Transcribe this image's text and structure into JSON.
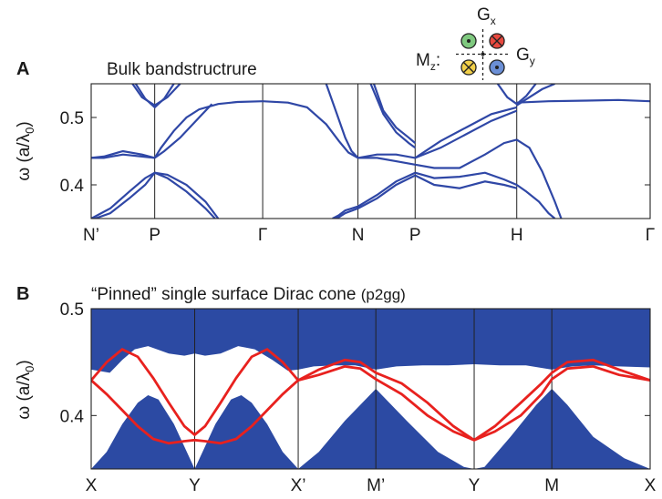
{
  "legend": {
    "mz_label": "M",
    "mz_sub": "z",
    "mz_colon": ":",
    "gx_label": "G",
    "gx_sub": "x",
    "gy_label": "G",
    "gy_sub": "y",
    "colors": {
      "green": "#7fc97f",
      "red": "#e8493f",
      "yellow": "#f2d04a",
      "blue": "#6b8fd6"
    }
  },
  "colors": {
    "bulk_band": "#2f47a6",
    "surface_band": "#e8211e",
    "bulk_continuum": "#2c4aa3"
  },
  "chart_data": [
    {
      "panel": "A",
      "type": "line",
      "title": "Bulk bandstructrure",
      "ylabel_symbol": "ω",
      "ylabel_a": "(a/λ",
      "ylabel_sub": "0",
      "ylabel_close": ")",
      "ylim": [
        0.35,
        0.55
      ],
      "yticks": [
        "0.4",
        "0.5"
      ],
      "ytick_values": [
        0.4,
        0.5
      ],
      "k_labels": [
        "N’",
        "P",
        "Γ",
        "N",
        "P",
        "H",
        "Γ"
      ],
      "k_positions": [
        0,
        1,
        2.7,
        4.2,
        5.1,
        6.7,
        8.8
      ],
      "series": [
        {
          "x": [
            0,
            0.2,
            0.5,
            0.8,
            1
          ],
          "y": [
            0.44,
            0.442,
            0.45,
            0.445,
            0.44
          ]
        },
        {
          "x": [
            0,
            0.2,
            0.5,
            0.8,
            1
          ],
          "y": [
            0.44,
            0.44,
            0.445,
            0.442,
            0.44
          ]
        },
        {
          "x": [
            0,
            0.3,
            0.6,
            0.85,
            1
          ],
          "y": [
            0.35,
            0.365,
            0.39,
            0.41,
            0.418
          ]
        },
        {
          "x": [
            0,
            0.3,
            0.6,
            0.85,
            1
          ],
          "y": [
            0.348,
            0.358,
            0.38,
            0.4,
            0.418
          ]
        },
        {
          "x": [
            1,
            1.2,
            1.5,
            1.8,
            2.0
          ],
          "y": [
            0.418,
            0.415,
            0.4,
            0.375,
            0.35
          ]
        },
        {
          "x": [
            1,
            1.2,
            1.5,
            1.8,
            1.95
          ],
          "y": [
            0.418,
            0.41,
            0.39,
            0.365,
            0.35
          ]
        },
        {
          "x": [
            1,
            1.15,
            1.4,
            1.7,
            1.9
          ],
          "y": [
            0.44,
            0.45,
            0.47,
            0.5,
            0.52
          ]
        },
        {
          "x": [
            1,
            1.1,
            1.3,
            1.5,
            1.7,
            2.0,
            2.3,
            2.7
          ],
          "y": [
            0.44,
            0.455,
            0.48,
            0.5,
            0.512,
            0.52,
            0.523,
            0.524
          ]
        },
        {
          "x": [
            0.65,
            0.8,
            1,
            1.2,
            1.4
          ],
          "y": [
            0.55,
            0.53,
            0.518,
            0.53,
            0.55
          ]
        },
        {
          "x": [
            0.7,
            0.85,
            1,
            1.15,
            1.3
          ],
          "y": [
            0.55,
            0.528,
            0.515,
            0.528,
            0.55
          ]
        },
        {
          "x": [
            2.7,
            3.1,
            3.4,
            3.7,
            3.9,
            4.05,
            4.2
          ],
          "y": [
            0.524,
            0.522,
            0.515,
            0.49,
            0.465,
            0.448,
            0.44
          ]
        },
        {
          "x": [
            3.7,
            3.85,
            4.0,
            4.1,
            4.2
          ],
          "y": [
            0.55,
            0.51,
            0.47,
            0.45,
            0.44
          ]
        },
        {
          "x": [
            3.8,
            3.9,
            4.0,
            4.2
          ],
          "y": [
            0.35,
            0.355,
            0.362,
            0.368
          ]
        },
        {
          "x": [
            3.8,
            3.9,
            4.0,
            4.2
          ],
          "y": [
            0.35,
            0.352,
            0.358,
            0.365
          ]
        },
        {
          "x": [
            4.2,
            4.5,
            4.8,
            5.1
          ],
          "y": [
            0.44,
            0.445,
            0.445,
            0.44
          ]
        },
        {
          "x": [
            4.2,
            4.5,
            4.8,
            5.1
          ],
          "y": [
            0.44,
            0.44,
            0.435,
            0.43
          ]
        },
        {
          "x": [
            4.2,
            4.5,
            4.8,
            5.1
          ],
          "y": [
            0.368,
            0.385,
            0.405,
            0.418
          ]
        },
        {
          "x": [
            4.2,
            4.5,
            4.8,
            5.1
          ],
          "y": [
            0.365,
            0.38,
            0.4,
            0.414
          ]
        },
        {
          "x": [
            4.45,
            4.6,
            4.8,
            5.0,
            5.1
          ],
          "y": [
            0.55,
            0.51,
            0.485,
            0.47,
            0.462
          ]
        },
        {
          "x": [
            4.4,
            4.6,
            4.8,
            5.0,
            5.1
          ],
          "y": [
            0.55,
            0.505,
            0.478,
            0.462,
            0.455
          ]
        },
        {
          "x": [
            5.1,
            5.5,
            5.9,
            6.3,
            6.7
          ],
          "y": [
            0.44,
            0.465,
            0.485,
            0.505,
            0.515
          ]
        },
        {
          "x": [
            5.1,
            5.5,
            5.9,
            6.3,
            6.7
          ],
          "y": [
            0.44,
            0.455,
            0.475,
            0.495,
            0.51
          ]
        },
        {
          "x": [
            5.1,
            5.4,
            5.8,
            6.2,
            6.5,
            6.7
          ],
          "y": [
            0.43,
            0.425,
            0.425,
            0.445,
            0.462,
            0.467
          ]
        },
        {
          "x": [
            5.1,
            5.4,
            5.8,
            6.2,
            6.5,
            6.7
          ],
          "y": [
            0.418,
            0.41,
            0.412,
            0.418,
            0.408,
            0.4
          ]
        },
        {
          "x": [
            5.1,
            5.4,
            5.8,
            6.2,
            6.5,
            6.7
          ],
          "y": [
            0.414,
            0.4,
            0.395,
            0.405,
            0.4,
            0.395
          ]
        },
        {
          "x": [
            6.7,
            6.9,
            7.1,
            7.3,
            7.4
          ],
          "y": [
            0.467,
            0.455,
            0.42,
            0.375,
            0.35
          ]
        },
        {
          "x": [
            6.7,
            6.85,
            7.05,
            7.2,
            7.3
          ],
          "y": [
            0.4,
            0.39,
            0.375,
            0.358,
            0.35
          ]
        },
        {
          "x": [
            6.4,
            6.55,
            6.7,
            6.85,
            7.0
          ],
          "y": [
            0.55,
            0.53,
            0.52,
            0.532,
            0.55
          ]
        },
        {
          "x": [
            6.7,
            7.2,
            7.8,
            8.3,
            8.8
          ],
          "y": [
            0.522,
            0.524,
            0.525,
            0.526,
            0.524
          ]
        },
        {
          "x": [
            6.7,
            6.9,
            7.1,
            7.3
          ],
          "y": [
            0.518,
            0.53,
            0.542,
            0.55
          ]
        }
      ]
    },
    {
      "panel": "B",
      "type": "area",
      "title": "“Pinned” single surface Dirac cone",
      "title_suffix": "(p2gg)",
      "ylabel_symbol": "ω",
      "ylabel_a": "(a/λ",
      "ylabel_sub": "0",
      "ylabel_close": ")",
      "ylim": [
        0.35,
        0.5
      ],
      "yticks": [
        "0.4",
        "0.5"
      ],
      "ytick_values": [
        0.4,
        0.5
      ],
      "k_labels": [
        "X",
        "Y",
        "X’",
        "M’",
        "Y",
        "M",
        "X"
      ],
      "k_positions": [
        0,
        1,
        2,
        2.75,
        3.7,
        4.45,
        5.4
      ],
      "upper_continuum": {
        "x": [
          0,
          0.18,
          0.3,
          0.42,
          0.55,
          0.75,
          0.9,
          1,
          1.1,
          1.25,
          1.42,
          1.58,
          1.75,
          1.9,
          2,
          2.15,
          2.35,
          2.55,
          2.75,
          2.95,
          3.2,
          3.45,
          3.7,
          3.95,
          4.2,
          4.45,
          4.65,
          4.85,
          5.1,
          5.4
        ],
        "y_bottom": [
          0.443,
          0.44,
          0.452,
          0.462,
          0.465,
          0.458,
          0.456,
          0.458,
          0.456,
          0.458,
          0.465,
          0.462,
          0.452,
          0.442,
          0.443,
          0.446,
          0.447,
          0.447,
          0.443,
          0.446,
          0.447,
          0.447,
          0.448,
          0.447,
          0.447,
          0.443,
          0.446,
          0.447,
          0.446,
          0.445
        ]
      },
      "lower_continuum": {
        "x": [
          0,
          0.15,
          0.3,
          0.45,
          0.55,
          0.65,
          0.8,
          1,
          1.2,
          1.35,
          1.45,
          1.55,
          1.7,
          1.85,
          2,
          2.2,
          2.45,
          2.75,
          3.05,
          3.35,
          3.6,
          3.7,
          3.8,
          4.05,
          4.3,
          4.45,
          4.6,
          4.85,
          5.15,
          5.4
        ],
        "y_top": [
          0.35,
          0.366,
          0.392,
          0.412,
          0.419,
          0.415,
          0.392,
          0.35,
          0.392,
          0.415,
          0.419,
          0.412,
          0.392,
          0.366,
          0.35,
          0.366,
          0.395,
          0.425,
          0.395,
          0.366,
          0.352,
          0.35,
          0.352,
          0.38,
          0.41,
          0.425,
          0.41,
          0.38,
          0.36,
          0.35
        ]
      },
      "surface_series": [
        {
          "x": [
            0,
            0.15,
            0.3,
            0.45,
            0.6,
            0.75,
            0.9,
            1,
            1.1,
            1.25,
            1.4,
            1.55,
            1.7,
            1.85,
            2
          ],
          "y": [
            0.433,
            0.45,
            0.462,
            0.455,
            0.435,
            0.412,
            0.39,
            0.382,
            0.39,
            0.412,
            0.435,
            0.455,
            0.462,
            0.45,
            0.433
          ]
        },
        {
          "x": [
            0,
            0.15,
            0.3,
            0.45,
            0.6,
            0.75,
            0.9,
            1,
            1.1,
            1.25,
            1.4,
            1.55,
            1.7,
            1.85,
            2
          ],
          "y": [
            0.433,
            0.42,
            0.405,
            0.39,
            0.378,
            0.374,
            0.376,
            0.377,
            0.376,
            0.374,
            0.378,
            0.39,
            0.405,
            0.42,
            0.433
          ]
        },
        {
          "x": [
            2,
            2.2,
            2.45,
            2.6,
            2.75,
            3.0,
            3.25,
            3.5,
            3.7,
            3.9,
            4.15,
            4.35,
            4.45,
            4.6,
            4.85,
            5.1,
            5.4
          ],
          "y": [
            0.433,
            0.443,
            0.452,
            0.45,
            0.44,
            0.43,
            0.412,
            0.39,
            0.377,
            0.39,
            0.412,
            0.43,
            0.44,
            0.45,
            0.452,
            0.443,
            0.433
          ]
        },
        {
          "x": [
            2,
            2.2,
            2.45,
            2.6,
            2.75,
            3.0,
            3.25,
            3.5,
            3.7,
            3.9,
            4.15,
            4.35,
            4.45,
            4.6,
            4.85,
            5.1,
            5.4
          ],
          "y": [
            0.433,
            0.438,
            0.446,
            0.444,
            0.434,
            0.42,
            0.4,
            0.385,
            0.377,
            0.385,
            0.4,
            0.42,
            0.434,
            0.444,
            0.446,
            0.438,
            0.433
          ]
        }
      ]
    }
  ]
}
